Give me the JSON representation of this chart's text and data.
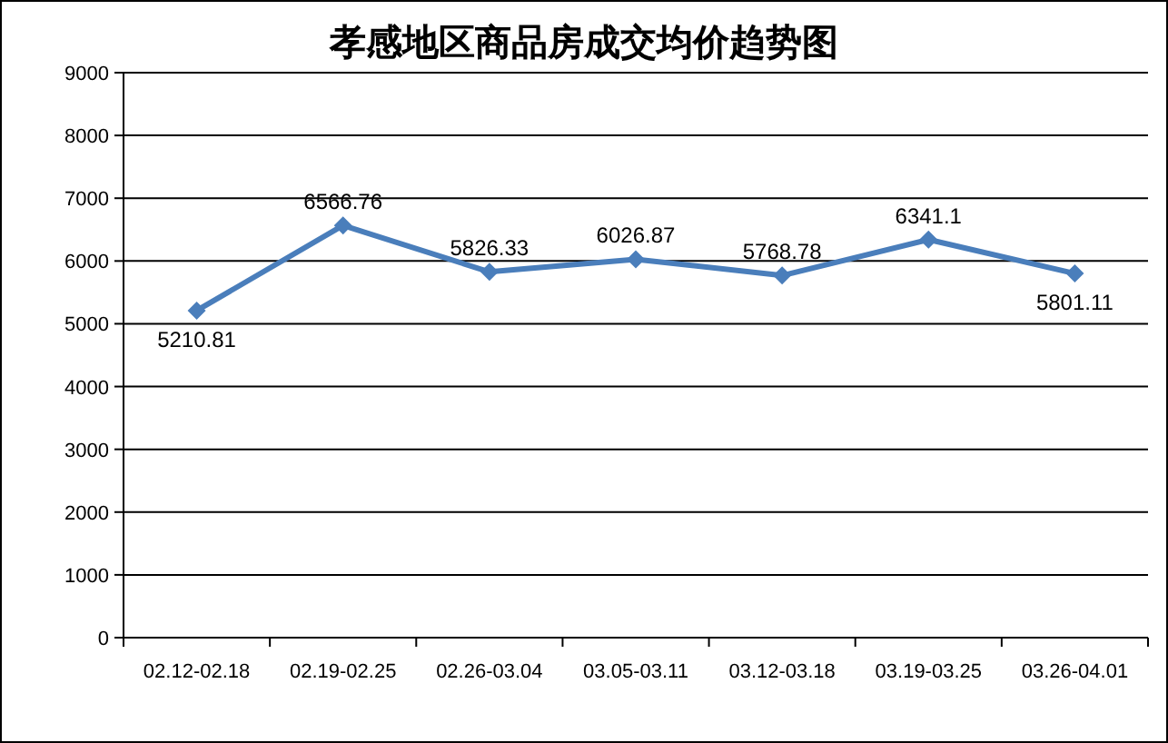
{
  "chart_data": {
    "type": "line",
    "title": "孝感地区商品房成交均价趋势图",
    "categories": [
      "02.12-02.18",
      "02.19-02.25",
      "02.26-03.04",
      "03.05-03.11",
      "03.12-03.18",
      "03.19-03.25",
      "03.26-04.01"
    ],
    "values": [
      5210.81,
      6566.76,
      5826.33,
      6026.87,
      5768.78,
      6341.1,
      5801.11
    ],
    "color": "#4a7ebb",
    "ylim": [
      0,
      9000
    ],
    "yticks": [
      0,
      1000,
      2000,
      3000,
      4000,
      5000,
      6000,
      7000,
      8000,
      9000
    ],
    "grid": "y",
    "marker": "diamond",
    "data_labels": true
  }
}
